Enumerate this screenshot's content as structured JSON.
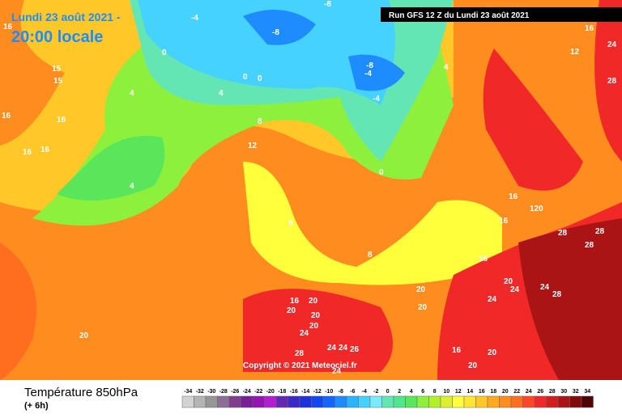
{
  "header": {
    "title_date": "Lundi 23 août 2021 -",
    "title_time": "20:00 locale",
    "run": "Run GFS 12 Z du Lundi 23 août 2021",
    "copyright": "Copyright © 2021 Meteociel.fr"
  },
  "legend": {
    "title": "Température 850hPa",
    "subtitle": "(+ 6h)",
    "ticks": [
      -34,
      -32,
      -30,
      -28,
      -26,
      -24,
      -22,
      -20,
      -18,
      -16,
      -14,
      -12,
      -10,
      -8,
      -6,
      -4,
      -2,
      0,
      2,
      4,
      6,
      8,
      10,
      12,
      14,
      16,
      18,
      20,
      22,
      24,
      26,
      28,
      30,
      32,
      34
    ],
    "colors": [
      "#d2d2d2",
      "#b4b4b4",
      "#969696",
      "#8c6e96",
      "#823c8c",
      "#781e96",
      "#9614b4",
      "#b41ed2",
      "#6428b4",
      "#3c28c8",
      "#1e32dc",
      "#1446f0",
      "#1464ff",
      "#1e8cff",
      "#28b4ff",
      "#46d2ff",
      "#78ebff",
      "#64e6b4",
      "#50e68c",
      "#5ae65a",
      "#8cf03c",
      "#b4f028",
      "#dcf032",
      "#ffff3c",
      "#ffe632",
      "#ffc828",
      "#ffaa1e",
      "#ff8c1e",
      "#ff6e1e",
      "#ff4628",
      "#f02828",
      "#d21e1e",
      "#aa1414",
      "#820a0a",
      "#500505"
    ]
  },
  "map_labels": [
    "16",
    "16",
    "16",
    "16",
    "15",
    "15",
    "16",
    "4",
    "4",
    "4",
    "0",
    "0",
    "0",
    "-4",
    "-8",
    "-8",
    "-8",
    "-4",
    "-4",
    "4",
    "8",
    "12",
    "0",
    "8",
    "8",
    "12",
    "16",
    "24",
    "28",
    "16",
    "16",
    "120",
    "28",
    "28",
    "28",
    "16",
    "20",
    "24",
    "24",
    "28",
    "24",
    "20",
    "20",
    "16",
    "20",
    "20",
    "20",
    "20",
    "24",
    "24",
    "24",
    "26",
    "28",
    "24",
    "16",
    "20",
    "20",
    "20"
  ]
}
